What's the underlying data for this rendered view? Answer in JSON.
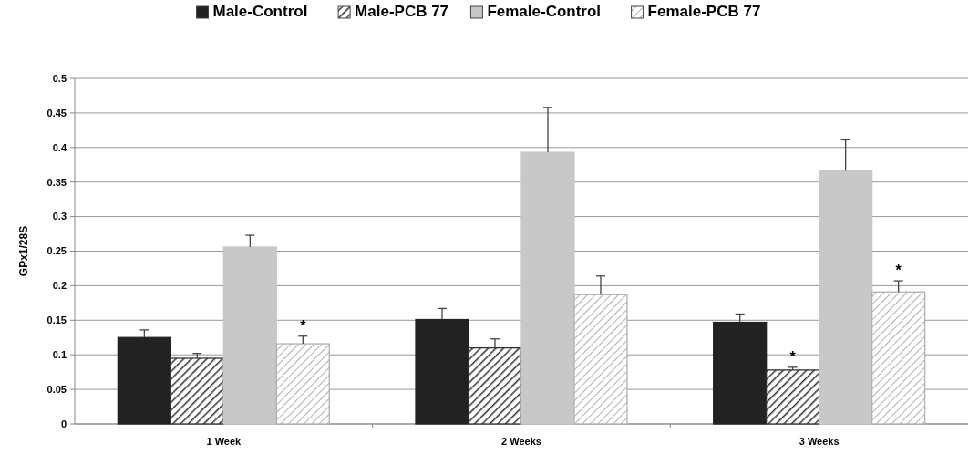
{
  "chart_data": {
    "type": "bar",
    "ylabel": "GPx1/28S",
    "categories": [
      "1 Week",
      "2 Weeks",
      "3 Weeks"
    ],
    "series": [
      {
        "name": "Male-Control",
        "color": "#222222",
        "values": [
          0.125,
          0.151,
          0.147
        ],
        "errors": [
          0.011,
          0.016,
          0.012
        ]
      },
      {
        "name": "Male-PCB 77",
        "color": "#333333",
        "values": [
          0.095,
          0.11,
          0.078
        ],
        "errors": [
          0.007,
          0.013,
          0.004
        ],
        "value_labels": [
          null,
          null,
          "*"
        ]
      },
      {
        "name": "Female-Control",
        "color": "#c8c8c8",
        "values": [
          0.256,
          0.393,
          0.366
        ],
        "errors": [
          0.017,
          0.065,
          0.045
        ]
      },
      {
        "name": "Female-PCB 77",
        "color": "#b0b0b0",
        "values": [
          0.116,
          0.187,
          0.191
        ],
        "errors": [
          0.011,
          0.027,
          0.016
        ],
        "value_labels": [
          "*",
          null,
          "*"
        ]
      }
    ],
    "ylim": [
      0,
      0.5
    ],
    "yticks": [
      0,
      0.05,
      0.1,
      0.15,
      0.2,
      0.25,
      0.3,
      0.35,
      0.4,
      0.45,
      0.5
    ],
    "grid": "y",
    "legend": "top"
  }
}
